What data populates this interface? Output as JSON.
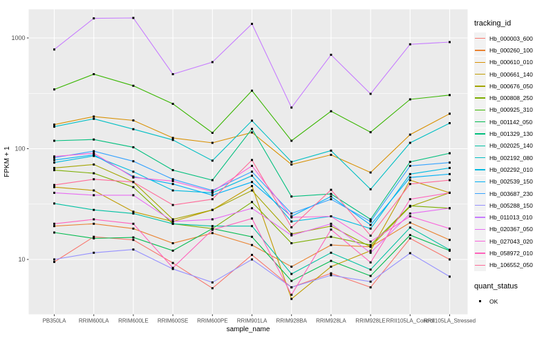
{
  "figure_bg": "#ffffff",
  "panel_bg": "#ebebeb",
  "grid_color": "#ffffff",
  "tick_color": "#333333",
  "axis_text_color": "#4d4d4d",
  "y_axis": {
    "title": "FPKM + 1",
    "tick_labels": [
      "1000",
      "100",
      "10"
    ]
  },
  "x_axis": {
    "title": "sample_name"
  },
  "legend": {
    "tracking_title": "tracking_id",
    "quant_title": "quant_status",
    "quant_items": [
      {
        "label": "OK",
        "marker": "black-square"
      }
    ]
  },
  "chart_data": {
    "type": "line",
    "title": "",
    "xlabel": "sample_name",
    "ylabel": "FPKM + 1",
    "y_scale": "log10",
    "y_ticks": [
      10,
      100,
      1000
    ],
    "y_minor_ticks": [
      31.6,
      316
    ],
    "ylim": [
      3.2,
      1810
    ],
    "grid": true,
    "legend_position": "right",
    "point_marker": "small-black-square",
    "quant_status": "OK",
    "categories": [
      "PB350LA",
      "RRIM600LA",
      "RRIM600LE",
      "RRIM600SE",
      "RRIM600PE",
      "RRIM901LA",
      "RRIM928BA",
      "RRIM928LA",
      "RRIM928LE",
      "RRII105LA_Control",
      "RRII105LA_Stressed"
    ],
    "series": [
      {
        "name": "Hb_000003_600",
        "color": "#F8766D",
        "values": [
          9.5,
          16,
          15,
          9.3,
          5.5,
          11,
          5.6,
          7.5,
          5.6,
          15.5,
          10
        ]
      },
      {
        "name": "Hb_000260_100",
        "color": "#EA8331",
        "values": [
          20,
          21,
          19,
          14,
          17.3,
          13.5,
          8.6,
          13.5,
          13,
          21.5,
          15
        ]
      },
      {
        "name": "Hb_000610_010",
        "color": "#D89000",
        "values": [
          165,
          195,
          180,
          125,
          113,
          140,
          72,
          88,
          61,
          134,
          207
        ]
      },
      {
        "name": "Hb_000661_140",
        "color": "#C09B00",
        "values": [
          45,
          42,
          27,
          22,
          28,
          46,
          4.4,
          8.6,
          12,
          52,
          40
        ]
      },
      {
        "name": "Hb_000676_050",
        "color": "#A3A500",
        "values": [
          67,
          72,
          50,
          23,
          28,
          42,
          17,
          20,
          13,
          30,
          40
        ]
      },
      {
        "name": "Hb_000808_250",
        "color": "#7CAE00",
        "values": [
          64,
          60,
          45,
          21,
          19,
          33,
          14,
          16,
          13.5,
          30.5,
          29
        ]
      },
      {
        "name": "Hb_000925_310",
        "color": "#39B600",
        "values": [
          343,
          471,
          370,
          254,
          139,
          334,
          118,
          218,
          141,
          279,
          305
        ]
      },
      {
        "name": "Hb_001142_050",
        "color": "#00BB4E",
        "values": [
          17.5,
          15.5,
          15.8,
          12,
          19,
          16,
          6.4,
          9.7,
          7.1,
          16.6,
          12
        ]
      },
      {
        "name": "Hb_001329_130",
        "color": "#00BF7D",
        "values": [
          118,
          121,
          103,
          64,
          52,
          151,
          37,
          39,
          23,
          76,
          91
        ]
      },
      {
        "name": "Hb_002025_140",
        "color": "#00C1A3",
        "values": [
          32,
          28,
          26,
          21,
          20,
          20,
          7.4,
          11.5,
          8.1,
          19.4,
          12.2
        ]
      },
      {
        "name": "Hb_002192_080",
        "color": "#00BFC4",
        "values": [
          158,
          186,
          150,
          120,
          78,
          179,
          76,
          96,
          43,
          113,
          170
        ]
      },
      {
        "name": "Hb_002292_010",
        "color": "#00BAE0",
        "values": [
          75,
          86,
          62,
          42,
          40,
          57,
          22,
          24.5,
          19,
          59,
          67
        ]
      },
      {
        "name": "Hb_002539_150",
        "color": "#00B0F6",
        "values": [
          79,
          88,
          56,
          48,
          38,
          50,
          24.5,
          37,
          20.5,
          55,
          59
        ]
      },
      {
        "name": "Hb_003687_230",
        "color": "#35A2FF",
        "values": [
          83,
          95,
          77,
          53,
          42,
          62,
          26,
          35,
          22,
          70,
          75
        ]
      },
      {
        "name": "Hb_005288_150",
        "color": "#9590FF",
        "values": [
          10,
          11.5,
          12.3,
          8.2,
          6.2,
          10,
          5.6,
          7.2,
          6.3,
          11.4,
          7
        ]
      },
      {
        "name": "Hb_011013_010",
        "color": "#C77CFF",
        "values": [
          787,
          1503,
          1516,
          471,
          605,
          1340,
          235,
          705,
          313,
          876,
          917
        ]
      },
      {
        "name": "Hb_020367_050",
        "color": "#E76BF3",
        "values": [
          40,
          38,
          38,
          22,
          23,
          29,
          16.5,
          21,
          11.5,
          26,
          29
        ]
      },
      {
        "name": "Hb_027043_020",
        "color": "#FA62DB",
        "values": [
          85,
          91,
          55,
          51,
          41,
          70,
          24,
          24.5,
          14.5,
          24.5,
          19
        ]
      },
      {
        "name": "Hb_058972_010",
        "color": "#FF62BC",
        "values": [
          21,
          23,
          21,
          8.4,
          18.5,
          23.4,
          4.8,
          18.6,
          9.4,
          35,
          40
        ]
      },
      {
        "name": "Hb_106552_050",
        "color": "#FF6A98",
        "values": [
          47,
          53,
          50,
          31,
          35,
          79,
          19.5,
          42.5,
          16.4,
          48,
          52
        ]
      }
    ]
  }
}
